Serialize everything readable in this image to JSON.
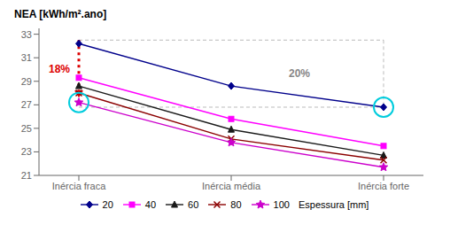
{
  "chart_data": {
    "type": "line",
    "title": "NEA [kWh/m².ano]",
    "categories": [
      "Inércia fraca",
      "Inércia média",
      "Inércia forte"
    ],
    "series": [
      {
        "name": "20",
        "color": "#00008B",
        "marker": "diamond",
        "line_style": "solid",
        "values": [
          32.2,
          28.6,
          26.8
        ]
      },
      {
        "name": "40",
        "color": "#FF00FF",
        "marker": "square",
        "line_style": "solid",
        "values": [
          29.3,
          25.8,
          23.5
        ]
      },
      {
        "name": "60",
        "color": "#1a1a1a",
        "marker": "triangle",
        "line_style": "solid",
        "values": [
          28.6,
          24.9,
          22.7
        ]
      },
      {
        "name": "80",
        "color": "#8B0000",
        "marker": "cross",
        "line_style": "solid",
        "values": [
          28.0,
          24.1,
          22.3
        ]
      },
      {
        "name": "100",
        "color": "#CC00CC",
        "marker": "star",
        "line_style": "solid",
        "values": [
          27.2,
          23.8,
          21.7
        ]
      }
    ],
    "ylim": [
      21,
      33.5
    ],
    "yticks": [
      21,
      23,
      25,
      27,
      29,
      31,
      33
    ],
    "grid": false,
    "legend": "bottom",
    "legend_title": "Espessura [mm]",
    "annotations": [
      {
        "type": "box",
        "color": "#aaaaaa",
        "line_style": "dashed",
        "x": [
          "Inércia fraca",
          "Inércia forte"
        ],
        "y": [
          26.8,
          32.5
        ],
        "label": "20%",
        "label_color": "#888888"
      },
      {
        "type": "arrow",
        "color": "#DD0000",
        "x": "Inércia fraca",
        "y": [
          32.5,
          27.6
        ],
        "label": "18%"
      },
      {
        "type": "circle",
        "color": "#00CCDD",
        "series": "100",
        "category": "Inércia fraca"
      },
      {
        "type": "circle",
        "color": "#00CCDD",
        "series": "20",
        "category": "Inércia forte"
      }
    ]
  }
}
